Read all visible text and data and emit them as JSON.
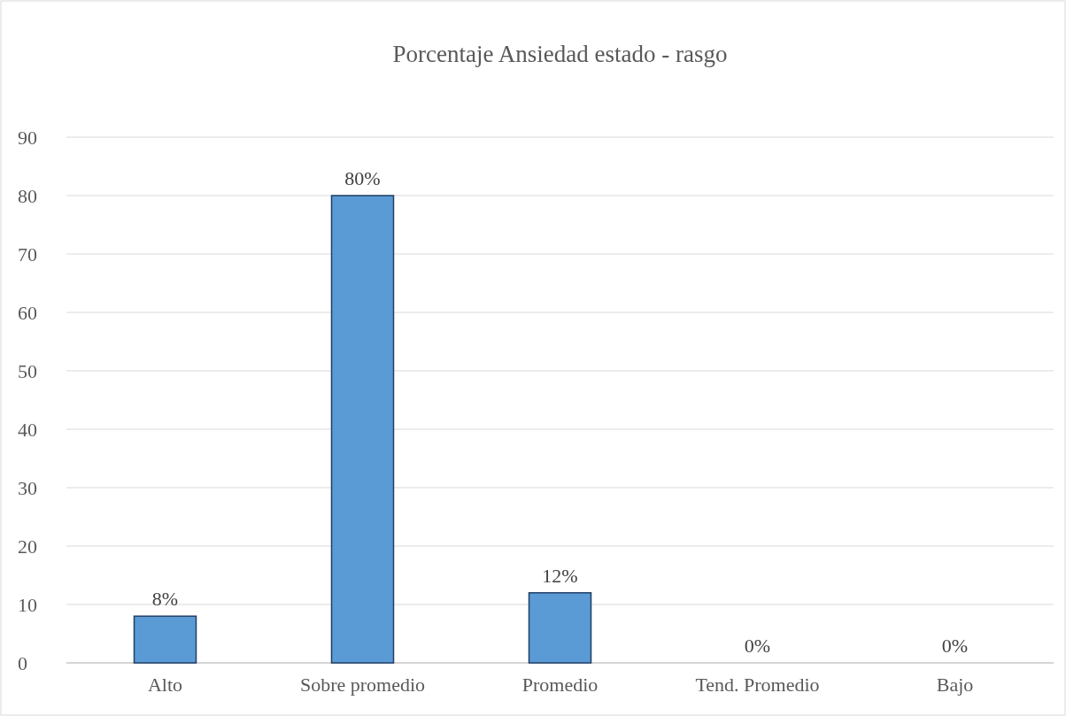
{
  "chart_data": {
    "type": "bar",
    "title": "Porcentaje Ansiedad estado - rasgo",
    "categories": [
      "Alto",
      "Sobre promedio",
      "Promedio",
      "Tend. Promedio",
      "Bajo"
    ],
    "values": [
      8,
      80,
      12,
      0,
      0
    ],
    "value_labels": [
      "8%",
      "80%",
      "12%",
      "0%",
      "0%"
    ],
    "color": "#5b9bd5",
    "ylim": [
      0,
      90
    ],
    "yticks": [
      0,
      10,
      20,
      30,
      40,
      50,
      60,
      70,
      80,
      90
    ],
    "grid": "y"
  }
}
